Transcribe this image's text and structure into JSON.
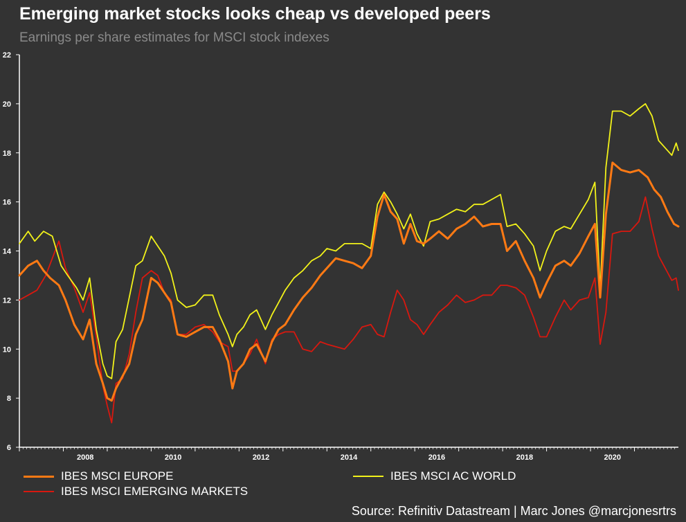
{
  "title": "Emerging market stocks looks cheap vs developed peers",
  "subtitle": "Earnings per share estimates for MSCI stock indexes",
  "source": "Source: Refinitiv Datastream | Marc Jones @marcjonesrtrs",
  "chart_data": {
    "type": "line",
    "title": "Emerging market stocks looks cheap vs developed peers",
    "subtitle": "Earnings per share estimates for MSCI stock indexes",
    "xlabel": "",
    "ylabel": "",
    "xlim": [
      2007.0,
      2022.0
    ],
    "ylim": [
      6,
      22
    ],
    "y_ticks": [
      6,
      8,
      10,
      12,
      14,
      16,
      18,
      20,
      22
    ],
    "x_ticks": [
      2008,
      2010,
      2012,
      2014,
      2016,
      2018,
      2020
    ],
    "x_tick_labels": [
      "2008",
      "2010",
      "2012",
      "2014",
      "2016",
      "2018",
      "2020"
    ],
    "grid": false,
    "legend_position": "bottom",
    "series": [
      {
        "name": "IBES MSCI EUROPE",
        "color": "#ff7a14",
        "points": [
          [
            2007.0,
            13.0
          ],
          [
            2007.2,
            13.4
          ],
          [
            2007.4,
            13.6
          ],
          [
            2007.55,
            13.2
          ],
          [
            2007.7,
            12.9
          ],
          [
            2007.9,
            12.6
          ],
          [
            2008.05,
            12.0
          ],
          [
            2008.25,
            11.0
          ],
          [
            2008.45,
            10.4
          ],
          [
            2008.6,
            11.2
          ],
          [
            2008.75,
            9.4
          ],
          [
            2008.9,
            8.6
          ],
          [
            2009.0,
            8.0
          ],
          [
            2009.1,
            7.9
          ],
          [
            2009.2,
            8.4
          ],
          [
            2009.35,
            8.9
          ],
          [
            2009.5,
            9.4
          ],
          [
            2009.65,
            10.6
          ],
          [
            2009.8,
            11.2
          ],
          [
            2010.0,
            12.9
          ],
          [
            2010.15,
            12.7
          ],
          [
            2010.3,
            12.3
          ],
          [
            2010.45,
            11.9
          ],
          [
            2010.6,
            10.6
          ],
          [
            2010.8,
            10.5
          ],
          [
            2011.0,
            10.7
          ],
          [
            2011.2,
            10.9
          ],
          [
            2011.4,
            10.9
          ],
          [
            2011.55,
            10.4
          ],
          [
            2011.75,
            9.5
          ],
          [
            2011.85,
            8.4
          ],
          [
            2011.95,
            9.1
          ],
          [
            2012.1,
            9.4
          ],
          [
            2012.25,
            10.0
          ],
          [
            2012.4,
            10.2
          ],
          [
            2012.6,
            9.5
          ],
          [
            2012.75,
            10.3
          ],
          [
            2012.9,
            10.8
          ],
          [
            2013.05,
            11.0
          ],
          [
            2013.25,
            11.6
          ],
          [
            2013.45,
            12.1
          ],
          [
            2013.65,
            12.5
          ],
          [
            2013.85,
            13.0
          ],
          [
            2014.0,
            13.3
          ],
          [
            2014.2,
            13.7
          ],
          [
            2014.4,
            13.6
          ],
          [
            2014.6,
            13.5
          ],
          [
            2014.8,
            13.3
          ],
          [
            2015.0,
            13.8
          ],
          [
            2015.15,
            15.4
          ],
          [
            2015.3,
            16.3
          ],
          [
            2015.45,
            15.6
          ],
          [
            2015.6,
            15.3
          ],
          [
            2015.75,
            14.3
          ],
          [
            2015.9,
            15.1
          ],
          [
            2016.05,
            14.4
          ],
          [
            2016.2,
            14.3
          ],
          [
            2016.35,
            14.5
          ],
          [
            2016.55,
            14.8
          ],
          [
            2016.75,
            14.5
          ],
          [
            2016.95,
            14.9
          ],
          [
            2017.15,
            15.1
          ],
          [
            2017.35,
            15.4
          ],
          [
            2017.55,
            15.0
          ],
          [
            2017.75,
            15.1
          ],
          [
            2017.95,
            15.1
          ],
          [
            2018.1,
            14.0
          ],
          [
            2018.3,
            14.4
          ],
          [
            2018.5,
            13.6
          ],
          [
            2018.7,
            12.9
          ],
          [
            2018.85,
            12.1
          ],
          [
            2019.0,
            12.7
          ],
          [
            2019.2,
            13.4
          ],
          [
            2019.4,
            13.6
          ],
          [
            2019.55,
            13.4
          ],
          [
            2019.75,
            13.9
          ],
          [
            2019.95,
            14.6
          ],
          [
            2020.1,
            15.1
          ],
          [
            2020.22,
            12.1
          ],
          [
            2020.35,
            15.5
          ],
          [
            2020.5,
            17.6
          ],
          [
            2020.7,
            17.3
          ],
          [
            2020.9,
            17.2
          ],
          [
            2021.1,
            17.3
          ],
          [
            2021.3,
            17.0
          ],
          [
            2021.45,
            16.5
          ],
          [
            2021.6,
            16.2
          ],
          [
            2021.75,
            15.6
          ],
          [
            2021.9,
            15.1
          ],
          [
            2022.0,
            15.0
          ]
        ]
      },
      {
        "name": "IBES MSCI AC WORLD",
        "color": "#f2f21a",
        "points": [
          [
            2007.0,
            14.3
          ],
          [
            2007.2,
            14.8
          ],
          [
            2007.35,
            14.4
          ],
          [
            2007.55,
            14.8
          ],
          [
            2007.75,
            14.6
          ],
          [
            2007.95,
            13.4
          ],
          [
            2008.1,
            13.0
          ],
          [
            2008.3,
            12.5
          ],
          [
            2008.45,
            12.0
          ],
          [
            2008.6,
            12.9
          ],
          [
            2008.75,
            10.8
          ],
          [
            2008.9,
            9.4
          ],
          [
            2009.0,
            8.9
          ],
          [
            2009.1,
            8.8
          ],
          [
            2009.2,
            10.3
          ],
          [
            2009.35,
            10.8
          ],
          [
            2009.5,
            12.1
          ],
          [
            2009.65,
            13.4
          ],
          [
            2009.8,
            13.6
          ],
          [
            2010.0,
            14.6
          ],
          [
            2010.15,
            14.2
          ],
          [
            2010.3,
            13.8
          ],
          [
            2010.45,
            13.1
          ],
          [
            2010.6,
            12.0
          ],
          [
            2010.8,
            11.7
          ],
          [
            2011.0,
            11.8
          ],
          [
            2011.2,
            12.2
          ],
          [
            2011.4,
            12.2
          ],
          [
            2011.55,
            11.4
          ],
          [
            2011.75,
            10.6
          ],
          [
            2011.85,
            10.1
          ],
          [
            2011.95,
            10.6
          ],
          [
            2012.1,
            10.9
          ],
          [
            2012.25,
            11.4
          ],
          [
            2012.4,
            11.6
          ],
          [
            2012.6,
            10.8
          ],
          [
            2012.75,
            11.4
          ],
          [
            2012.9,
            11.9
          ],
          [
            2013.05,
            12.4
          ],
          [
            2013.25,
            12.9
          ],
          [
            2013.45,
            13.2
          ],
          [
            2013.65,
            13.6
          ],
          [
            2013.85,
            13.8
          ],
          [
            2014.0,
            14.1
          ],
          [
            2014.2,
            14.0
          ],
          [
            2014.4,
            14.3
          ],
          [
            2014.6,
            14.3
          ],
          [
            2014.8,
            14.3
          ],
          [
            2015.0,
            14.1
          ],
          [
            2015.15,
            15.9
          ],
          [
            2015.3,
            16.4
          ],
          [
            2015.45,
            16.0
          ],
          [
            2015.6,
            15.5
          ],
          [
            2015.75,
            14.9
          ],
          [
            2015.9,
            15.5
          ],
          [
            2016.05,
            14.7
          ],
          [
            2016.2,
            14.2
          ],
          [
            2016.35,
            15.2
          ],
          [
            2016.55,
            15.3
          ],
          [
            2016.75,
            15.5
          ],
          [
            2016.95,
            15.7
          ],
          [
            2017.15,
            15.6
          ],
          [
            2017.35,
            15.9
          ],
          [
            2017.55,
            15.9
          ],
          [
            2017.75,
            16.1
          ],
          [
            2017.95,
            16.3
          ],
          [
            2018.1,
            15.0
          ],
          [
            2018.3,
            15.1
          ],
          [
            2018.5,
            14.7
          ],
          [
            2018.7,
            14.2
          ],
          [
            2018.85,
            13.2
          ],
          [
            2019.0,
            14.0
          ],
          [
            2019.2,
            14.8
          ],
          [
            2019.4,
            15.0
          ],
          [
            2019.55,
            14.9
          ],
          [
            2019.75,
            15.5
          ],
          [
            2019.95,
            16.1
          ],
          [
            2020.1,
            16.8
          ],
          [
            2020.22,
            12.4
          ],
          [
            2020.35,
            17.4
          ],
          [
            2020.5,
            19.7
          ],
          [
            2020.7,
            19.7
          ],
          [
            2020.9,
            19.5
          ],
          [
            2021.1,
            19.8
          ],
          [
            2021.25,
            20.0
          ],
          [
            2021.4,
            19.5
          ],
          [
            2021.55,
            18.5
          ],
          [
            2021.7,
            18.2
          ],
          [
            2021.85,
            17.9
          ],
          [
            2021.95,
            18.4
          ],
          [
            2022.0,
            18.1
          ]
        ]
      },
      {
        "name": "IBES MSCI EMERGING MARKETS",
        "color": "#d9180f",
        "points": [
          [
            2007.0,
            12.0
          ],
          [
            2007.2,
            12.2
          ],
          [
            2007.4,
            12.4
          ],
          [
            2007.6,
            13.0
          ],
          [
            2007.75,
            13.7
          ],
          [
            2007.9,
            14.4
          ],
          [
            2008.05,
            13.3
          ],
          [
            2008.25,
            12.5
          ],
          [
            2008.45,
            11.5
          ],
          [
            2008.6,
            12.3
          ],
          [
            2008.75,
            10.5
          ],
          [
            2008.9,
            8.5
          ],
          [
            2009.0,
            7.7
          ],
          [
            2009.1,
            7.0
          ],
          [
            2009.2,
            8.6
          ],
          [
            2009.35,
            8.8
          ],
          [
            2009.5,
            9.8
          ],
          [
            2009.65,
            11.5
          ],
          [
            2009.8,
            12.9
          ],
          [
            2010.0,
            13.2
          ],
          [
            2010.15,
            13.0
          ],
          [
            2010.3,
            12.3
          ],
          [
            2010.45,
            12.0
          ],
          [
            2010.6,
            10.6
          ],
          [
            2010.8,
            10.6
          ],
          [
            2011.0,
            10.9
          ],
          [
            2011.2,
            11.0
          ],
          [
            2011.4,
            10.7
          ],
          [
            2011.55,
            10.3
          ],
          [
            2011.75,
            10.1
          ],
          [
            2011.85,
            9.1
          ],
          [
            2011.95,
            9.1
          ],
          [
            2012.1,
            9.4
          ],
          [
            2012.25,
            9.8
          ],
          [
            2012.4,
            10.4
          ],
          [
            2012.6,
            9.4
          ],
          [
            2012.75,
            10.4
          ],
          [
            2012.9,
            10.6
          ],
          [
            2013.05,
            10.7
          ],
          [
            2013.25,
            10.7
          ],
          [
            2013.45,
            10.0
          ],
          [
            2013.65,
            9.9
          ],
          [
            2013.85,
            10.3
          ],
          [
            2014.0,
            10.2
          ],
          [
            2014.2,
            10.1
          ],
          [
            2014.4,
            10.0
          ],
          [
            2014.6,
            10.4
          ],
          [
            2014.8,
            10.9
          ],
          [
            2015.0,
            11.0
          ],
          [
            2015.15,
            10.6
          ],
          [
            2015.3,
            10.5
          ],
          [
            2015.45,
            11.5
          ],
          [
            2015.6,
            12.4
          ],
          [
            2015.75,
            12.0
          ],
          [
            2015.9,
            11.2
          ],
          [
            2016.05,
            11.0
          ],
          [
            2016.2,
            10.6
          ],
          [
            2016.35,
            11.0
          ],
          [
            2016.55,
            11.5
          ],
          [
            2016.75,
            11.8
          ],
          [
            2016.95,
            12.2
          ],
          [
            2017.15,
            11.9
          ],
          [
            2017.35,
            12.0
          ],
          [
            2017.55,
            12.2
          ],
          [
            2017.75,
            12.2
          ],
          [
            2017.95,
            12.6
          ],
          [
            2018.1,
            12.6
          ],
          [
            2018.3,
            12.5
          ],
          [
            2018.5,
            12.2
          ],
          [
            2018.7,
            11.3
          ],
          [
            2018.85,
            10.5
          ],
          [
            2019.0,
            10.5
          ],
          [
            2019.2,
            11.3
          ],
          [
            2019.4,
            12.0
          ],
          [
            2019.55,
            11.6
          ],
          [
            2019.75,
            12.0
          ],
          [
            2019.95,
            12.1
          ],
          [
            2020.1,
            12.9
          ],
          [
            2020.22,
            10.2
          ],
          [
            2020.35,
            11.5
          ],
          [
            2020.5,
            14.7
          ],
          [
            2020.7,
            14.8
          ],
          [
            2020.9,
            14.8
          ],
          [
            2021.1,
            15.2
          ],
          [
            2021.25,
            16.2
          ],
          [
            2021.4,
            14.9
          ],
          [
            2021.55,
            13.8
          ],
          [
            2021.7,
            13.3
          ],
          [
            2021.85,
            12.8
          ],
          [
            2021.95,
            12.9
          ],
          [
            2022.0,
            12.4
          ]
        ]
      }
    ]
  }
}
